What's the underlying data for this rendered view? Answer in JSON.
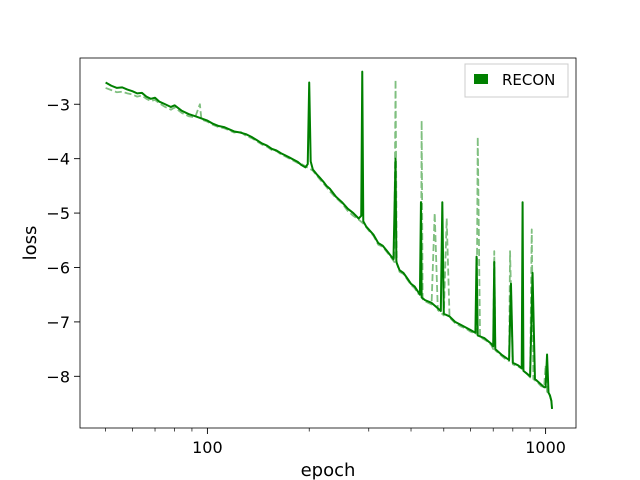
{
  "chart_data": {
    "type": "line",
    "xlabel": "epoch",
    "ylabel": "loss",
    "xscale": "log",
    "xlim": [
      42,
      1230
    ],
    "ylim": [
      -8.95,
      -2.15
    ],
    "x_ticks": [
      100,
      1000
    ],
    "x_tick_labels": [
      "100",
      "1000"
    ],
    "y_ticks": [
      -8,
      -7,
      -6,
      -5,
      -4,
      -3
    ],
    "y_tick_labels": [
      "−8",
      "−7",
      "−6",
      "−5",
      "−4",
      "−3"
    ],
    "grid": false,
    "legend": {
      "position": "top-right",
      "entries": [
        "RECON"
      ]
    },
    "series": [
      {
        "name": "RECON",
        "style": "solid",
        "color": "#008000",
        "points": [
          [
            50,
            -2.6
          ],
          [
            52,
            -2.66
          ],
          [
            54,
            -2.7
          ],
          [
            56,
            -2.69
          ],
          [
            58,
            -2.73
          ],
          [
            60,
            -2.76
          ],
          [
            62,
            -2.8
          ],
          [
            64,
            -2.79
          ],
          [
            66,
            -2.86
          ],
          [
            68,
            -2.9
          ],
          [
            70,
            -2.88
          ],
          [
            72,
            -2.95
          ],
          [
            75,
            -3.0
          ],
          [
            78,
            -3.05
          ],
          [
            80,
            -3.02
          ],
          [
            84,
            -3.12
          ],
          [
            88,
            -3.18
          ],
          [
            92,
            -3.22
          ],
          [
            96,
            -3.26
          ],
          [
            100,
            -3.3
          ],
          [
            104,
            -3.36
          ],
          [
            108,
            -3.4
          ],
          [
            112,
            -3.42
          ],
          [
            116,
            -3.46
          ],
          [
            120,
            -3.5
          ],
          [
            125,
            -3.52
          ],
          [
            130,
            -3.55
          ],
          [
            135,
            -3.6
          ],
          [
            140,
            -3.66
          ],
          [
            145,
            -3.72
          ],
          [
            150,
            -3.76
          ],
          [
            155,
            -3.82
          ],
          [
            160,
            -3.85
          ],
          [
            165,
            -3.9
          ],
          [
            170,
            -3.94
          ],
          [
            175,
            -3.98
          ],
          [
            180,
            -4.02
          ],
          [
            185,
            -4.06
          ],
          [
            190,
            -4.12
          ],
          [
            195,
            -4.16
          ],
          [
            198,
            -4.1
          ],
          [
            200,
            -2.6
          ],
          [
            202,
            -4.05
          ],
          [
            205,
            -4.2
          ],
          [
            210,
            -4.28
          ],
          [
            215,
            -4.35
          ],
          [
            220,
            -4.42
          ],
          [
            225,
            -4.5
          ],
          [
            230,
            -4.55
          ],
          [
            240,
            -4.7
          ],
          [
            250,
            -4.8
          ],
          [
            260,
            -4.92
          ],
          [
            270,
            -5.0
          ],
          [
            280,
            -5.1
          ],
          [
            285,
            -5.05
          ],
          [
            287,
            -2.4
          ],
          [
            289,
            -5.15
          ],
          [
            295,
            -5.25
          ],
          [
            300,
            -5.3
          ],
          [
            310,
            -5.4
          ],
          [
            320,
            -5.55
          ],
          [
            330,
            -5.6
          ],
          [
            340,
            -5.7
          ],
          [
            350,
            -5.8
          ],
          [
            355,
            -5.85
          ],
          [
            360,
            -4.0
          ],
          [
            362,
            -5.9
          ],
          [
            370,
            -6.05
          ],
          [
            380,
            -6.1
          ],
          [
            390,
            -6.2
          ],
          [
            400,
            -6.3
          ],
          [
            410,
            -6.35
          ],
          [
            420,
            -6.45
          ],
          [
            425,
            -6.5
          ],
          [
            428,
            -4.8
          ],
          [
            430,
            -6.55
          ],
          [
            440,
            -6.6
          ],
          [
            460,
            -6.65
          ],
          [
            480,
            -6.75
          ],
          [
            490,
            -6.8
          ],
          [
            495,
            -4.8
          ],
          [
            500,
            -6.85
          ],
          [
            520,
            -6.9
          ],
          [
            540,
            -7.0
          ],
          [
            560,
            -7.05
          ],
          [
            580,
            -7.1
          ],
          [
            600,
            -7.15
          ],
          [
            620,
            -7.2
          ],
          [
            625,
            -5.8
          ],
          [
            630,
            -7.25
          ],
          [
            660,
            -7.3
          ],
          [
            690,
            -7.4
          ],
          [
            700,
            -7.45
          ],
          [
            705,
            -5.9
          ],
          [
            710,
            -7.5
          ],
          [
            740,
            -7.6
          ],
          [
            760,
            -7.65
          ],
          [
            780,
            -7.7
          ],
          [
            790,
            -6.3
          ],
          [
            800,
            -7.75
          ],
          [
            830,
            -7.8
          ],
          [
            850,
            -7.85
          ],
          [
            855,
            -4.8
          ],
          [
            860,
            -7.9
          ],
          [
            880,
            -7.95
          ],
          [
            900,
            -8.0
          ],
          [
            915,
            -6.1
          ],
          [
            930,
            -8.05
          ],
          [
            950,
            -8.1
          ],
          [
            970,
            -8.15
          ],
          [
            990,
            -8.2
          ],
          [
            1000,
            -8.2
          ],
          [
            1010,
            -7.6
          ],
          [
            1020,
            -8.3
          ],
          [
            1030,
            -8.35
          ],
          [
            1040,
            -8.45
          ],
          [
            1045,
            -8.6
          ]
        ]
      },
      {
        "style": "dashed",
        "color": "#7fbf7f",
        "points": [
          [
            50,
            -2.7
          ],
          [
            52,
            -2.74
          ],
          [
            54,
            -2.78
          ],
          [
            56,
            -2.77
          ],
          [
            58,
            -2.8
          ],
          [
            60,
            -2.82
          ],
          [
            62,
            -2.86
          ],
          [
            64,
            -2.84
          ],
          [
            66,
            -2.9
          ],
          [
            68,
            -2.94
          ],
          [
            70,
            -2.92
          ],
          [
            72,
            -2.98
          ],
          [
            75,
            -3.05
          ],
          [
            78,
            -3.1
          ],
          [
            80,
            -3.06
          ],
          [
            84,
            -3.16
          ],
          [
            88,
            -3.22
          ],
          [
            92,
            -3.24
          ],
          [
            95,
            -3.0
          ],
          [
            96,
            -3.28
          ],
          [
            100,
            -3.32
          ],
          [
            104,
            -3.38
          ],
          [
            108,
            -3.42
          ],
          [
            112,
            -3.44
          ],
          [
            116,
            -3.48
          ],
          [
            120,
            -3.52
          ],
          [
            125,
            -3.5
          ],
          [
            130,
            -3.58
          ],
          [
            135,
            -3.62
          ],
          [
            140,
            -3.68
          ],
          [
            145,
            -3.74
          ],
          [
            150,
            -3.78
          ],
          [
            155,
            -3.84
          ],
          [
            160,
            -3.86
          ],
          [
            165,
            -3.92
          ],
          [
            170,
            -3.96
          ],
          [
            175,
            -4.0
          ],
          [
            180,
            -4.04
          ],
          [
            185,
            -4.08
          ],
          [
            190,
            -4.1
          ],
          [
            195,
            -4.14
          ],
          [
            200,
            -4.18
          ],
          [
            205,
            -4.22
          ],
          [
            210,
            -4.3
          ],
          [
            215,
            -4.38
          ],
          [
            220,
            -4.45
          ],
          [
            225,
            -4.52
          ],
          [
            230,
            -4.6
          ],
          [
            240,
            -4.72
          ],
          [
            250,
            -4.82
          ],
          [
            260,
            -4.96
          ],
          [
            270,
            -5.05
          ],
          [
            280,
            -5.12
          ],
          [
            290,
            -5.2
          ],
          [
            300,
            -5.32
          ],
          [
            310,
            -5.42
          ],
          [
            320,
            -5.58
          ],
          [
            330,
            -5.62
          ],
          [
            340,
            -5.72
          ],
          [
            350,
            -5.82
          ],
          [
            357,
            -5.9
          ],
          [
            360,
            -2.55
          ],
          [
            363,
            -5.92
          ],
          [
            370,
            -6.08
          ],
          [
            380,
            -6.12
          ],
          [
            390,
            -6.22
          ],
          [
            400,
            -6.32
          ],
          [
            410,
            -6.38
          ],
          [
            420,
            -6.48
          ],
          [
            428,
            -6.5
          ],
          [
            430,
            -3.3
          ],
          [
            433,
            -6.58
          ],
          [
            440,
            -6.62
          ],
          [
            460,
            -6.68
          ],
          [
            470,
            -5.0
          ],
          [
            480,
            -6.78
          ],
          [
            500,
            -6.88
          ],
          [
            510,
            -5.1
          ],
          [
            520,
            -6.92
          ],
          [
            540,
            -7.02
          ],
          [
            560,
            -7.08
          ],
          [
            580,
            -7.12
          ],
          [
            600,
            -7.18
          ],
          [
            625,
            -7.22
          ],
          [
            630,
            -3.6
          ],
          [
            640,
            -7.28
          ],
          [
            670,
            -7.35
          ],
          [
            690,
            -7.42
          ],
          [
            700,
            -7.5
          ],
          [
            705,
            -5.7
          ],
          [
            710,
            -7.52
          ],
          [
            740,
            -7.62
          ],
          [
            760,
            -7.68
          ],
          [
            780,
            -7.72
          ],
          [
            785,
            -5.7
          ],
          [
            800,
            -7.78
          ],
          [
            830,
            -7.82
          ],
          [
            860,
            -7.88
          ],
          [
            880,
            -7.95
          ],
          [
            900,
            -8.02
          ],
          [
            910,
            -5.3
          ],
          [
            920,
            -8.05
          ],
          [
            950,
            -8.12
          ],
          [
            970,
            -8.18
          ],
          [
            990,
            -8.2
          ],
          [
            1000,
            -7.8
          ],
          [
            1010,
            -8.28
          ],
          [
            1030,
            -8.36
          ],
          [
            1045,
            -8.5
          ]
        ]
      }
    ]
  }
}
